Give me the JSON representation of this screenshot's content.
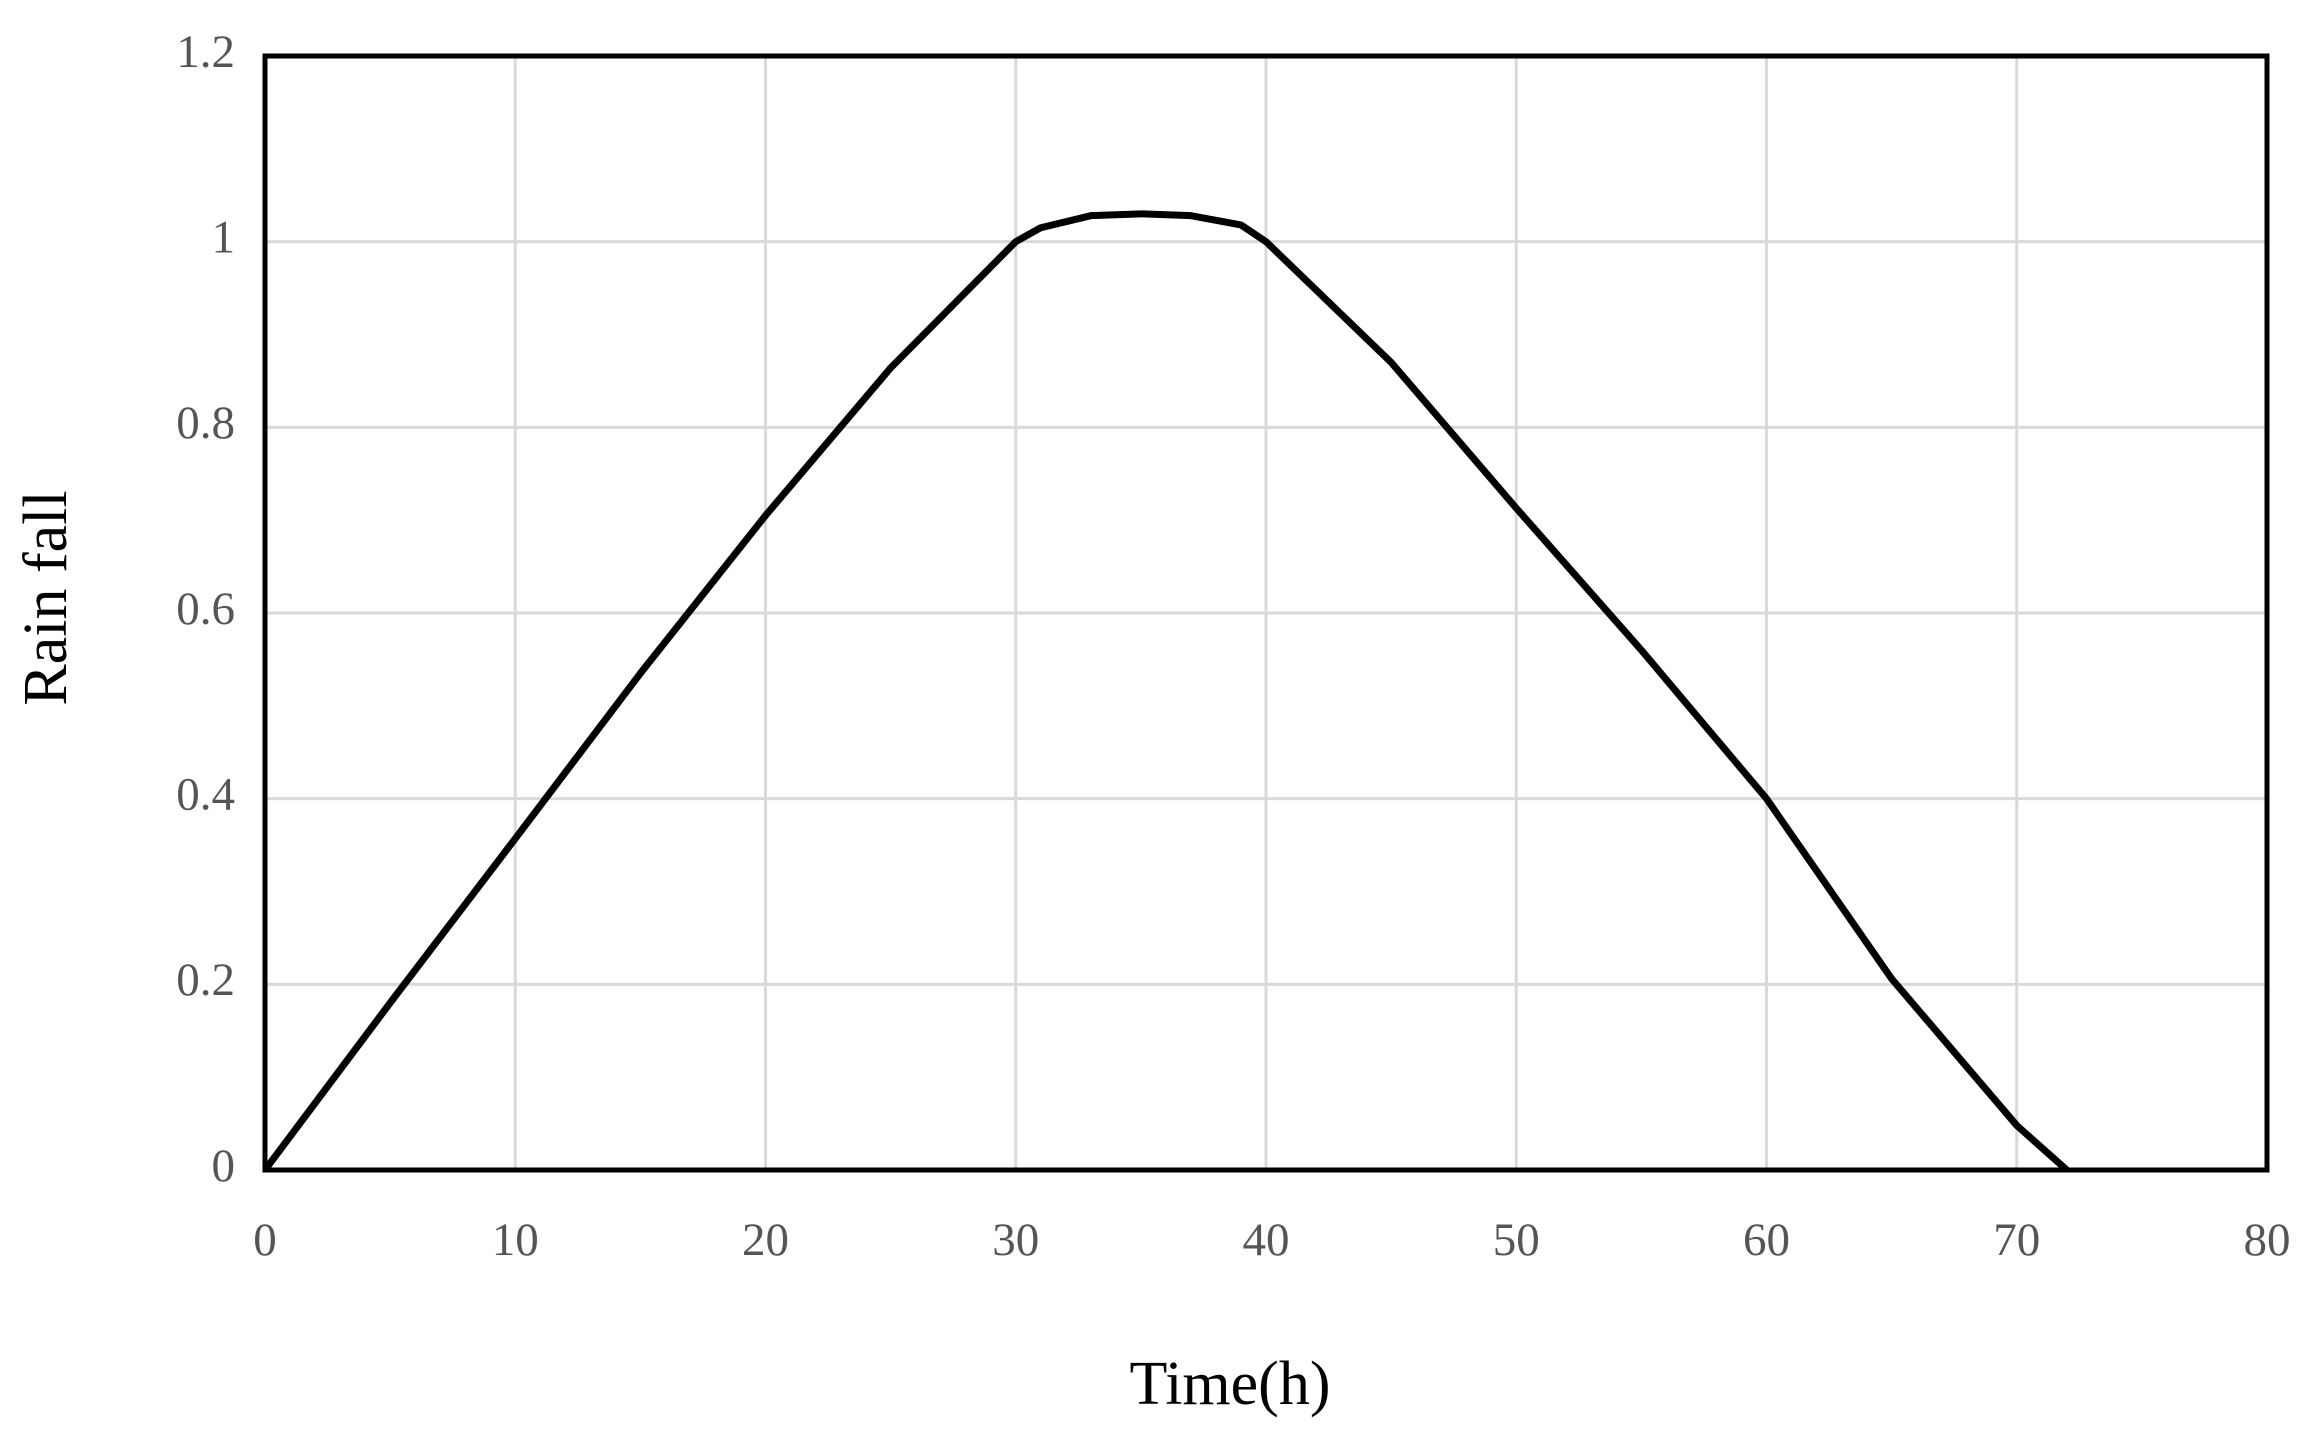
{
  "chart_data": {
    "type": "line",
    "x_label": "Time(h)",
    "y_label": "Rain fall",
    "x": [
      0,
      5,
      10,
      15,
      20,
      25,
      30,
      31,
      33,
      35,
      37,
      39,
      40,
      45,
      50,
      55,
      60,
      65,
      70,
      72
    ],
    "series": [
      {
        "color": "#000000",
        "values": [
          0,
          0.18,
          0.357,
          0.535,
          0.705,
          0.864,
          1.0,
          1.015,
          1.028,
          1.03,
          1.028,
          1.018,
          1.0,
          0.87,
          0.713,
          0.56,
          0.4,
          0.206,
          0.048,
          0
        ]
      }
    ],
    "xlim": [
      0,
      80
    ],
    "xticks": [
      0,
      10,
      20,
      30,
      40,
      50,
      60,
      70,
      80
    ],
    "ylim": [
      0,
      1.2
    ],
    "yticks": [
      0,
      0.2,
      0.4,
      0.6,
      0.8,
      1,
      1.2
    ],
    "grid": true
  }
}
